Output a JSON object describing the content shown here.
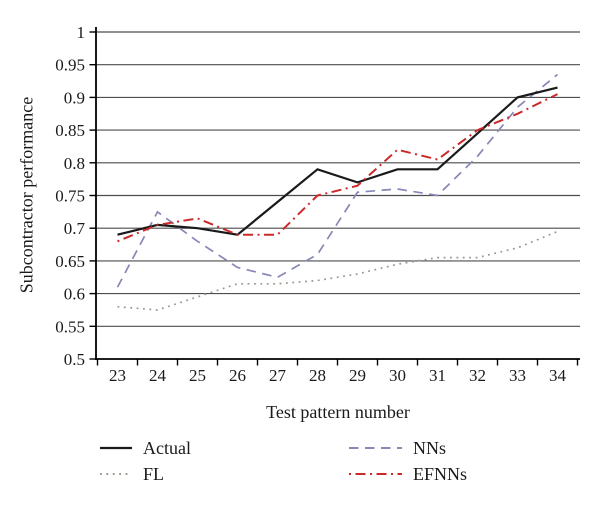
{
  "chart_data": {
    "type": "line",
    "title": "",
    "xlabel": "Test pattern number",
    "ylabel": "Subcontractor performance",
    "x_categories": [
      "23",
      "24",
      "25",
      "26",
      "27",
      "28",
      "29",
      "30",
      "31",
      "32",
      "33",
      "34"
    ],
    "ylim": [
      0.5,
      1.0
    ],
    "y_tick_step": 0.05,
    "y_tick_labels": [
      "0.5",
      "0.55",
      "0.6",
      "0.65",
      "0.7",
      "0.75",
      "0.8",
      "0.85",
      "0.9",
      "0.95",
      "1"
    ],
    "grid": "horizontal gridlines at every 0.05, no vertical gridlines",
    "legend_position": "bottom, two columns",
    "colors": {
      "axis": "#000000",
      "gridline": "#4d4d4d",
      "text": "#1a1a1a"
    },
    "series": [
      {
        "name": "Actual",
        "color": "#1a1a1a",
        "dash": "solid",
        "values": [
          0.69,
          0.705,
          0.7,
          0.69,
          0.74,
          0.79,
          0.77,
          0.79,
          0.79,
          0.845,
          0.9,
          0.915
        ]
      },
      {
        "name": "FL",
        "color": "#9b978d",
        "dash": "dotted",
        "values": [
          0.58,
          0.575,
          0.595,
          0.615,
          0.615,
          0.62,
          0.63,
          0.645,
          0.655,
          0.655,
          0.67,
          0.695
        ]
      },
      {
        "name": "NNs",
        "color": "#8787b8",
        "dash": "dashed",
        "values": [
          0.61,
          0.725,
          0.68,
          0.64,
          0.625,
          0.66,
          0.755,
          0.76,
          0.75,
          0.81,
          0.885,
          0.935
        ]
      },
      {
        "name": "EFNNs",
        "color": "#cc2929",
        "dash": "dashdot",
        "values": [
          0.68,
          0.705,
          0.715,
          0.69,
          0.69,
          0.75,
          0.765,
          0.82,
          0.805,
          0.85,
          0.875,
          0.905
        ]
      }
    ]
  }
}
